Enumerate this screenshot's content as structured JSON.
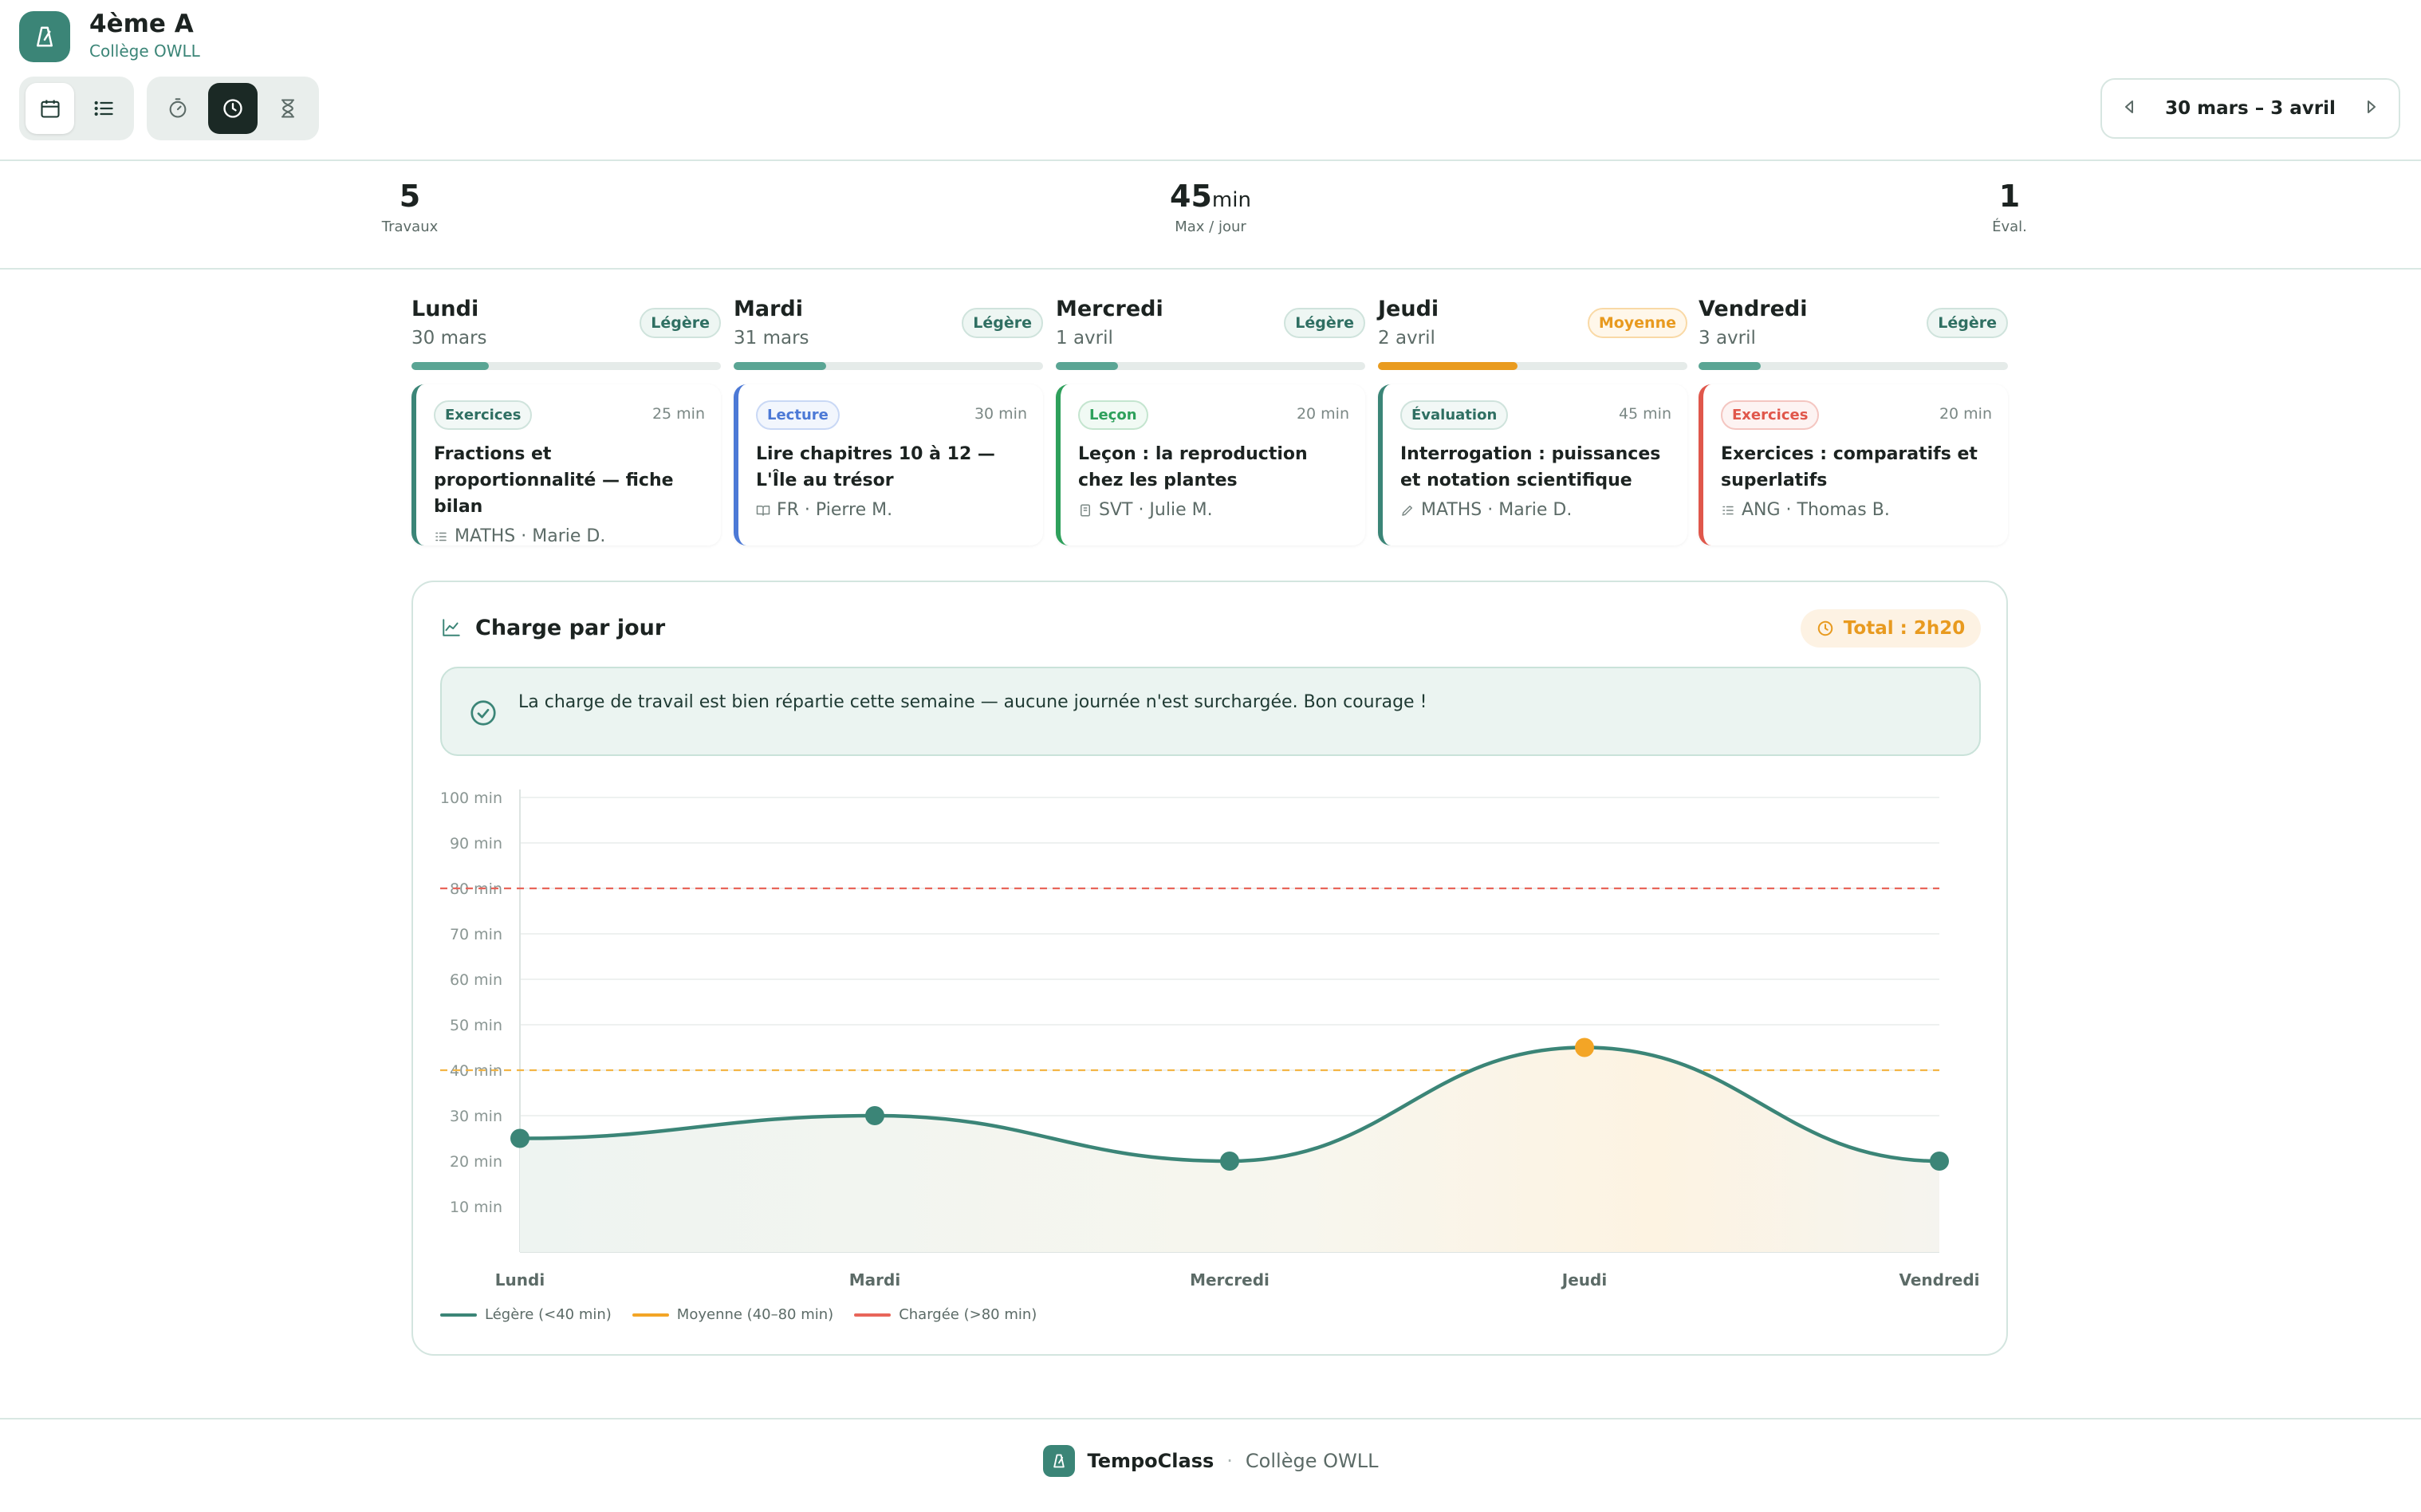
{
  "header": {
    "class_name": "4ème A",
    "school": "Collège OWLL",
    "week_range": "30 mars – 3 avril"
  },
  "stats": {
    "works_value": "5",
    "works_label": "Travaux",
    "max_value": "45",
    "max_unit": "min",
    "max_label": "Max / jour",
    "eval_value": "1",
    "eval_label": "Éval."
  },
  "days": [
    {
      "name": "Lundi",
      "date": "30 mars",
      "load": "Légère",
      "load_fraction": 0.25,
      "tag": "Exercices",
      "duration": "25 min",
      "title": "Fractions et proportionnalité — fiche bilan",
      "meta": "MATHS · Marie D."
    },
    {
      "name": "Mardi",
      "date": "31 mars",
      "load": "Légère",
      "load_fraction": 0.3,
      "tag": "Lecture",
      "duration": "30 min",
      "title": "Lire chapitres 10 à 12 — L'Île au trésor",
      "meta": "FR · Pierre M."
    },
    {
      "name": "Mercredi",
      "date": "1 avril",
      "load": "Légère",
      "load_fraction": 0.2,
      "tag": "Leçon",
      "duration": "20 min",
      "title": "Leçon : la reproduction chez les plantes",
      "meta": "SVT · Julie M."
    },
    {
      "name": "Jeudi",
      "date": "2 avril",
      "load": "Moyenne",
      "load_fraction": 0.45,
      "tag": "Évaluation",
      "duration": "45 min",
      "title": "Interrogation : puissances et notation scientifique",
      "meta": "MATHS · Marie D."
    },
    {
      "name": "Vendredi",
      "date": "3 avril",
      "load": "Légère",
      "load_fraction": 0.2,
      "tag": "Exercices",
      "duration": "20 min",
      "title": "Exercices : comparatifs et superlatifs",
      "meta": "ANG · Thomas B."
    }
  ],
  "panel": {
    "title": "Charge par jour",
    "total": "Total : 2h20",
    "message": "La charge de travail est bien répartie cette semaine — aucune journée n'est surchargée. Bon courage !"
  },
  "chart_data": {
    "type": "line",
    "categories": [
      "Lundi",
      "Mardi",
      "Mercredi",
      "Jeudi",
      "Vendredi"
    ],
    "values": [
      25,
      30,
      20,
      45,
      20
    ],
    "ylim": [
      0,
      100
    ],
    "yticks": [
      "10 min",
      "20 min",
      "30 min",
      "40 min",
      "50 min",
      "60 min",
      "70 min",
      "80 min",
      "90 min",
      "100 min"
    ],
    "thresholds": [
      {
        "value": 40,
        "color": "#f3b545"
      },
      {
        "value": 80,
        "color": "#e8655a"
      }
    ],
    "legend": [
      {
        "label": "Légère (<40 min)",
        "color": "#3b8577"
      },
      {
        "label": "Moyenne (40–80 min)",
        "color": "#f3a526"
      },
      {
        "label": "Chargée (>80 min)",
        "color": "#e8655a"
      }
    ]
  },
  "footer": {
    "brand": "TempoClass",
    "separator": "·",
    "school": "Collège OWLL"
  }
}
